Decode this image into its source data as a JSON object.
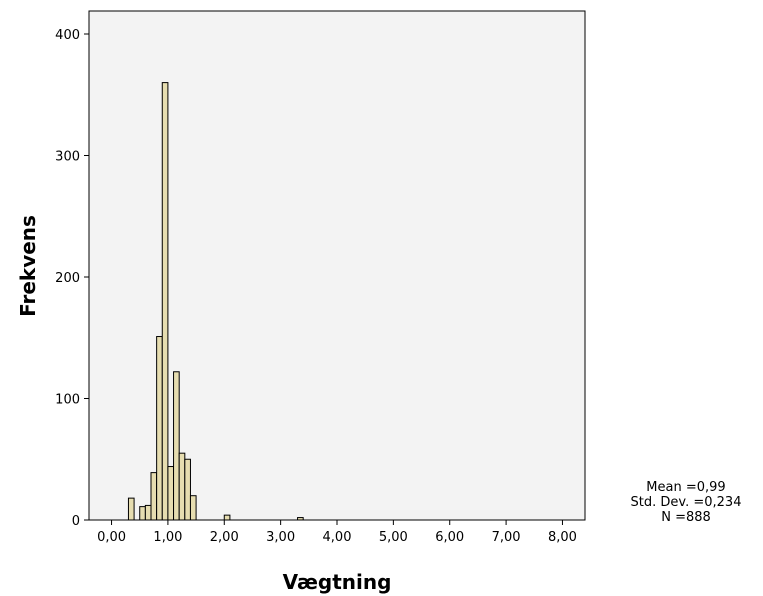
{
  "chart_data": {
    "type": "bar",
    "xlabel": "Vægtning",
    "ylabel": "Frekvens",
    "xlim": [
      -0.4,
      8.4
    ],
    "ylim": [
      0,
      400
    ],
    "x_ticks": [
      0,
      1,
      2,
      3,
      4,
      5,
      6,
      7,
      8
    ],
    "x_tick_labels": [
      "0,00",
      "1,00",
      "2,00",
      "3,00",
      "4,00",
      "5,00",
      "6,00",
      "7,00",
      "8,00"
    ],
    "y_ticks": [
      0,
      100,
      200,
      300,
      400
    ],
    "y_tick_labels": [
      "0",
      "100",
      "200",
      "300",
      "400"
    ],
    "bin_width": 0.1,
    "bins": [
      {
        "x": 0.35,
        "count": 18
      },
      {
        "x": 0.55,
        "count": 11
      },
      {
        "x": 0.65,
        "count": 12
      },
      {
        "x": 0.75,
        "count": 39
      },
      {
        "x": 0.85,
        "count": 151
      },
      {
        "x": 0.95,
        "count": 360
      },
      {
        "x": 1.05,
        "count": 44
      },
      {
        "x": 1.15,
        "count": 122
      },
      {
        "x": 1.25,
        "count": 55
      },
      {
        "x": 1.35,
        "count": 50
      },
      {
        "x": 1.45,
        "count": 20
      },
      {
        "x": 2.05,
        "count": 4
      },
      {
        "x": 3.35,
        "count": 2
      }
    ],
    "stats": {
      "mean": "Mean =0,99",
      "std_dev": "Std. Dev. =0,234",
      "n": "N =888"
    },
    "grid": false,
    "colors": {
      "plot_background": "#f3f3f3",
      "bar_fill": "#e6ddb0",
      "bar_stroke": "#000000"
    }
  }
}
